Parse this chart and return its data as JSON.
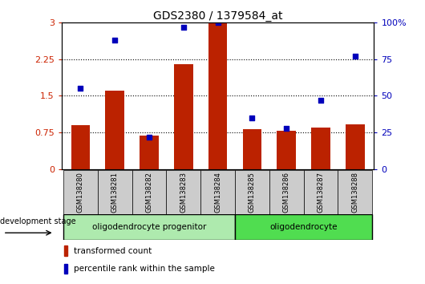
{
  "title": "GDS2380 / 1379584_at",
  "samples": [
    "GSM138280",
    "GSM138281",
    "GSM138282",
    "GSM138283",
    "GSM138284",
    "GSM138285",
    "GSM138286",
    "GSM138287",
    "GSM138288"
  ],
  "transformed_count": [
    0.9,
    1.6,
    0.68,
    2.15,
    3.0,
    0.82,
    0.78,
    0.85,
    0.92
  ],
  "percentile_rank": [
    55,
    88,
    22,
    97,
    100,
    35,
    28,
    47,
    77
  ],
  "groups": [
    {
      "label": "oligodendrocyte progenitor",
      "start": 0,
      "end": 4,
      "color": "#AEEAAE"
    },
    {
      "label": "oligodendrocyte",
      "start": 5,
      "end": 8,
      "color": "#50DD50"
    }
  ],
  "ylim_left": [
    0,
    3.0
  ],
  "ylim_right": [
    0,
    100
  ],
  "yticks_left": [
    0,
    0.75,
    1.5,
    2.25,
    3.0
  ],
  "ytick_labels_left": [
    "0",
    "0.75",
    "1.5",
    "2.25",
    "3"
  ],
  "yticks_right": [
    0,
    25,
    50,
    75,
    100
  ],
  "ytick_labels_right": [
    "0",
    "25",
    "50",
    "75",
    "100%"
  ],
  "hlines": [
    0.75,
    1.5,
    2.25
  ],
  "bar_color": "#BB2200",
  "dot_color": "#0000BB",
  "bar_width": 0.55,
  "legend_bar_label": "transformed count",
  "legend_dot_label": "percentile rank within the sample",
  "dev_stage_label": "development stage",
  "background_plot": "#FFFFFF",
  "background_samples": "#CCCCCC",
  "tick_label_color_left": "#CC2200",
  "tick_label_color_right": "#0000BB"
}
